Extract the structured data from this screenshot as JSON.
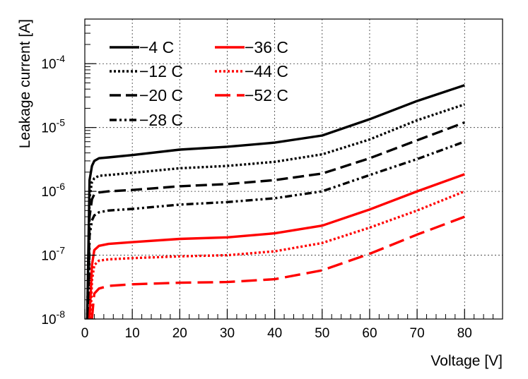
{
  "chart_data": {
    "type": "line",
    "title": "",
    "xlabel": "Voltage [V]",
    "ylabel": "Leakage current [A]",
    "xlim": [
      0,
      88
    ],
    "ylim": [
      1e-08,
      0.0005
    ],
    "yscale": "log",
    "grid": true,
    "legend_position": "top-left",
    "x_ticks": [
      "0",
      "10",
      "20",
      "30",
      "40",
      "50",
      "60",
      "70",
      "80"
    ],
    "y_ticks": [
      {
        "base": "10",
        "exp": "-8"
      },
      {
        "base": "10",
        "exp": "-7"
      },
      {
        "base": "10",
        "exp": "-6"
      },
      {
        "base": "10",
        "exp": "-5"
      },
      {
        "base": "10",
        "exp": "-4"
      }
    ],
    "series": [
      {
        "name": "−4 C",
        "color": "#000000",
        "style": "solid",
        "x": [
          0.5,
          1,
          1.5,
          2,
          3,
          5,
          10,
          20,
          30,
          40,
          50,
          60,
          70,
          80
        ],
        "y": [
          1e-08,
          1.5e-06,
          2.5e-06,
          3e-06,
          3.3e-06,
          3.4e-06,
          3.7e-06,
          4.5e-06,
          5e-06,
          5.8e-06,
          7.5e-06,
          1.35e-05,
          2.6e-05,
          4.6e-05
        ]
      },
      {
        "name": "−12 C",
        "color": "#000000",
        "style": "dotted",
        "x": [
          0.5,
          1,
          1.5,
          2,
          3,
          5,
          10,
          20,
          30,
          40,
          50,
          60,
          70,
          80
        ],
        "y": [
          1e-08,
          8e-07,
          1.4e-06,
          1.6e-06,
          1.75e-06,
          1.8e-06,
          1.95e-06,
          2.3e-06,
          2.5e-06,
          2.9e-06,
          3.8e-06,
          6.5e-06,
          1.3e-05,
          2.3e-05
        ]
      },
      {
        "name": "−20 C",
        "color": "#000000",
        "style": "dashed",
        "x": [
          0.7,
          1,
          1.5,
          2,
          3,
          5,
          10,
          20,
          30,
          40,
          50,
          60,
          70,
          80
        ],
        "y": [
          1e-08,
          4e-07,
          7.5e-07,
          9e-07,
          9.6e-07,
          1e-06,
          1.05e-06,
          1.2e-06,
          1.3e-06,
          1.5e-06,
          1.9e-06,
          3.3e-06,
          6.3e-06,
          1.2e-05
        ]
      },
      {
        "name": "−28 C",
        "color": "#000000",
        "style": "dashdot",
        "x": [
          0.8,
          1,
          1.5,
          2,
          3,
          5,
          10,
          20,
          30,
          40,
          50,
          60,
          70,
          80
        ],
        "y": [
          1e-08,
          2e-07,
          3.5e-07,
          4.2e-07,
          4.7e-07,
          5e-07,
          5.3e-07,
          6.2e-07,
          6.8e-07,
          7.8e-07,
          1e-06,
          1.8e-06,
          3.2e-06,
          6e-06
        ]
      },
      {
        "name": "−36 C",
        "color": "#ff0000",
        "style": "solid",
        "x": [
          1,
          1.5,
          2,
          3,
          5,
          10,
          20,
          30,
          40,
          50,
          60,
          70,
          80
        ],
        "y": [
          1e-08,
          7e-08,
          1.2e-07,
          1.4e-07,
          1.5e-07,
          1.6e-07,
          1.8e-07,
          1.9e-07,
          2.2e-07,
          2.9e-07,
          5.2e-07,
          1e-06,
          1.85e-06
        ]
      },
      {
        "name": "−44 C",
        "color": "#ff0000",
        "style": "dotted",
        "x": [
          1.2,
          1.5,
          2,
          3,
          5,
          10,
          20,
          30,
          40,
          50,
          60,
          70,
          80
        ],
        "y": [
          1e-08,
          4e-08,
          7e-08,
          8.2e-08,
          8.6e-08,
          9e-08,
          9.6e-08,
          1e-07,
          1.15e-07,
          1.55e-07,
          2.7e-07,
          5e-07,
          1e-06
        ]
      },
      {
        "name": "−52 C",
        "color": "#ff0000",
        "style": "longdash",
        "x": [
          1.5,
          1.8,
          2,
          3,
          5,
          10,
          20,
          30,
          40,
          50,
          60,
          70,
          80
        ],
        "y": [
          1e-08,
          1.8e-08,
          2.5e-08,
          3e-08,
          3.3e-08,
          3.5e-08,
          3.7e-08,
          3.8e-08,
          4.2e-08,
          5.8e-08,
          1.05e-07,
          2.1e-07,
          4e-07
        ]
      }
    ]
  }
}
